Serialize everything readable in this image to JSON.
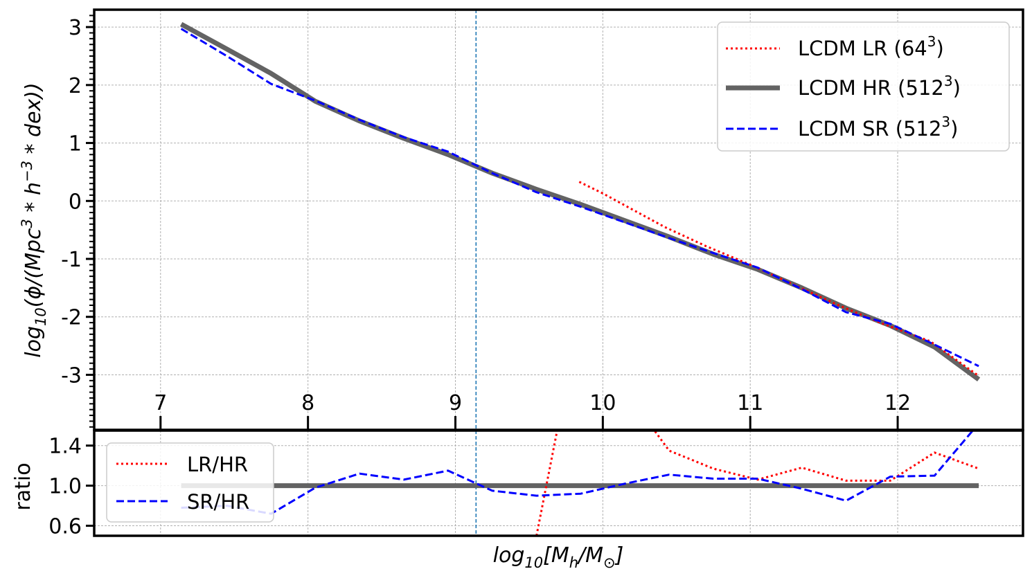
{
  "chart_data": [
    {
      "panel": "main",
      "type": "line",
      "xlabel": "log10[Mh/M⊙]",
      "ylabel": "log10(ϕ/(Mpc³*h⁻³*dex))",
      "xlim": [
        6.55,
        12.85
      ],
      "ylim": [
        -3.95,
        3.3
      ],
      "xticks": [
        7,
        8,
        9,
        10,
        11,
        12
      ],
      "yticks": [
        3,
        2,
        1,
        0,
        -1,
        -2,
        -3
      ],
      "ytick_labels": [
        "3",
        "2",
        "1",
        "0",
        "-1",
        "-2",
        "-3"
      ],
      "grid": true,
      "legend_position": "top-right",
      "vline_x": 9.14,
      "series": [
        {
          "name": "LCDM LR (64",
          "name_sup": "3",
          "name_tail": ")",
          "style": "dotted",
          "color": "#ff0000",
          "x": [
            9.84,
            10.0,
            10.18,
            10.42,
            10.7,
            11.0,
            11.3,
            11.6,
            11.9,
            12.22,
            12.55
          ],
          "y": [
            0.33,
            0.13,
            -0.12,
            -0.45,
            -0.78,
            -1.1,
            -1.45,
            -1.8,
            -2.12,
            -2.42,
            -3.02
          ]
        },
        {
          "name": "LCDM HR (512",
          "name_sup": "3",
          "name_tail": ")",
          "style": "solid",
          "color": "#636363",
          "x": [
            7.14,
            7.45,
            7.75,
            8.05,
            8.35,
            8.65,
            8.95,
            9.25,
            9.55,
            9.85,
            10.15,
            10.45,
            10.75,
            11.05,
            11.35,
            11.65,
            11.95,
            12.25,
            12.55
          ],
          "y": [
            3.05,
            2.62,
            2.2,
            1.72,
            1.38,
            1.08,
            0.8,
            0.48,
            0.2,
            -0.06,
            -0.34,
            -0.62,
            -0.92,
            -1.18,
            -1.5,
            -1.85,
            -2.15,
            -2.52,
            -3.08
          ]
        },
        {
          "name": "LCDM SR (512",
          "name_sup": "3",
          "name_tail": ")",
          "style": "dashed",
          "color": "#0000ff",
          "x": [
            7.14,
            7.45,
            7.75,
            8.05,
            8.35,
            8.65,
            8.95,
            9.25,
            9.55,
            9.85,
            10.15,
            10.45,
            10.75,
            11.05,
            11.35,
            11.65,
            11.95,
            12.25,
            12.55
          ],
          "y": [
            2.97,
            2.5,
            2.02,
            1.73,
            1.4,
            1.1,
            0.85,
            0.48,
            0.15,
            -0.1,
            -0.37,
            -0.64,
            -0.9,
            -1.15,
            -1.52,
            -1.92,
            -2.12,
            -2.48,
            -2.85
          ]
        }
      ]
    },
    {
      "panel": "ratio",
      "type": "line",
      "xlabel": "",
      "ylabel": "ratio",
      "xlim": [
        6.55,
        12.85
      ],
      "ylim": [
        0.5,
        1.55
      ],
      "yticks": [
        1.4,
        1.0,
        0.6
      ],
      "ytick_labels": [
        "1.4",
        "1.0",
        "0.6"
      ],
      "grid": true,
      "legend_position": "top-left",
      "vline_x": 9.14,
      "series": [
        {
          "name": "LR/HR",
          "style": "dotted",
          "color": "#ff0000",
          "x": [
            9.55,
            9.69,
            9.86,
            10.35,
            10.45,
            10.75,
            11.05,
            11.35,
            11.65,
            11.95,
            12.25,
            12.55
          ],
          "y": [
            0.5,
            1.55,
            2.6,
            1.55,
            1.35,
            1.17,
            1.06,
            1.18,
            1.05,
            1.05,
            1.33,
            1.17
          ]
        },
        {
          "name": "",
          "style": "solid",
          "color": "#636363",
          "x": [
            7.14,
            12.55
          ],
          "y": [
            1.0,
            1.0
          ]
        },
        {
          "name": "SR/HR",
          "style": "dashed",
          "color": "#0000ff",
          "x": [
            7.14,
            7.45,
            7.75,
            8.05,
            8.35,
            8.65,
            8.95,
            9.25,
            9.55,
            9.85,
            10.15,
            10.45,
            10.75,
            11.05,
            11.35,
            11.65,
            11.95,
            12.25,
            12.55
          ],
          "y": [
            0.78,
            0.8,
            0.72,
            0.98,
            1.12,
            1.06,
            1.15,
            0.95,
            0.9,
            0.92,
            1.02,
            1.11,
            1.07,
            1.07,
            0.97,
            0.85,
            1.09,
            1.1,
            1.62
          ]
        }
      ]
    }
  ]
}
